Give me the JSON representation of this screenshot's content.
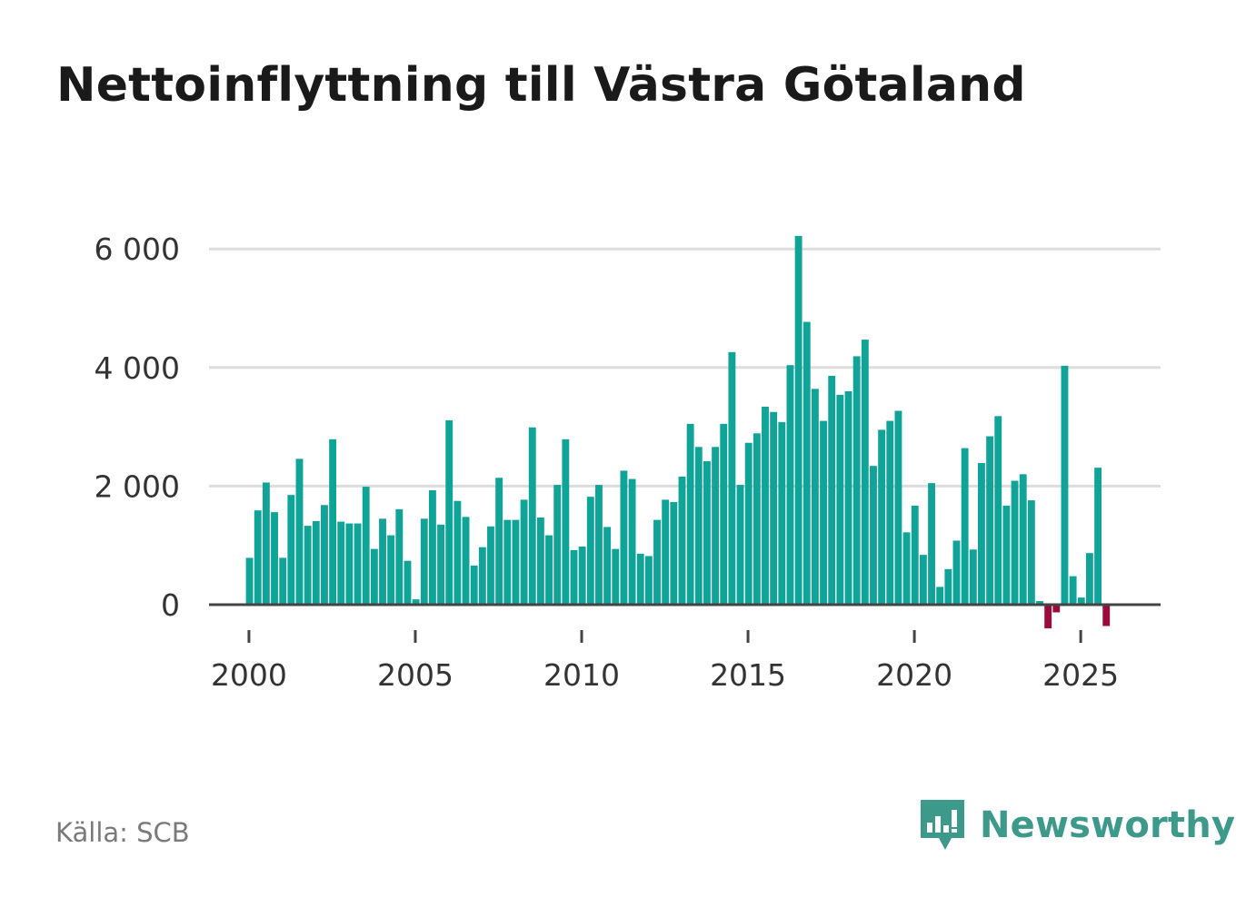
{
  "title": "Nettoinflyttning till Västra Götaland",
  "source_label": "Källa: SCB",
  "brand": {
    "name": "Newsworthy",
    "icon": "newsworthy-logo-icon"
  },
  "colors": {
    "positive": "#10a398",
    "negative": "#9c0a3c",
    "grid": "#dddddd",
    "axis": "#444444",
    "brand": "#3d9a8b"
  },
  "chart_data": {
    "type": "bar",
    "title": "Nettoinflyttning till Västra Götaland",
    "xlabel": "",
    "ylabel": "",
    "x_start": 2000.0,
    "x_step": 0.25,
    "xlim": [
      1998.8,
      2027.4
    ],
    "ylim": [
      -450,
      6200
    ],
    "yticks": [
      0,
      2000,
      4000,
      6000
    ],
    "ytick_labels": [
      "0",
      "2 000",
      "4 000",
      "6 000"
    ],
    "xticks": [
      2000,
      2005,
      2010,
      2015,
      2020,
      2025
    ],
    "xtick_labels": [
      "2000",
      "2005",
      "2010",
      "2015",
      "2020",
      "2025"
    ],
    "grid": true,
    "values": [
      790,
      1590,
      2060,
      1560,
      790,
      1850,
      2460,
      1330,
      1410,
      1680,
      2790,
      1400,
      1370,
      1370,
      1990,
      940,
      1450,
      1170,
      1610,
      740,
      90,
      1450,
      1930,
      1350,
      3110,
      1750,
      1480,
      660,
      970,
      1320,
      2140,
      1430,
      1430,
      1770,
      2990,
      1470,
      1170,
      2020,
      2790,
      920,
      980,
      1820,
      2020,
      1310,
      940,
      2260,
      2120,
      860,
      820,
      1430,
      1770,
      1730,
      2160,
      3050,
      2660,
      2420,
      2660,
      3050,
      4260,
      2020,
      2730,
      2890,
      3340,
      3250,
      3080,
      4040,
      6220,
      4770,
      3640,
      3100,
      3860,
      3540,
      3600,
      4190,
      4470,
      2340,
      2950,
      3100,
      3270,
      1220,
      1670,
      840,
      2050,
      300,
      600,
      1080,
      2640,
      930,
      2390,
      2840,
      3180,
      1670,
      2090,
      2200,
      1760,
      60,
      -400,
      -130,
      4030,
      480,
      120,
      870,
      2310,
      -360
    ]
  }
}
